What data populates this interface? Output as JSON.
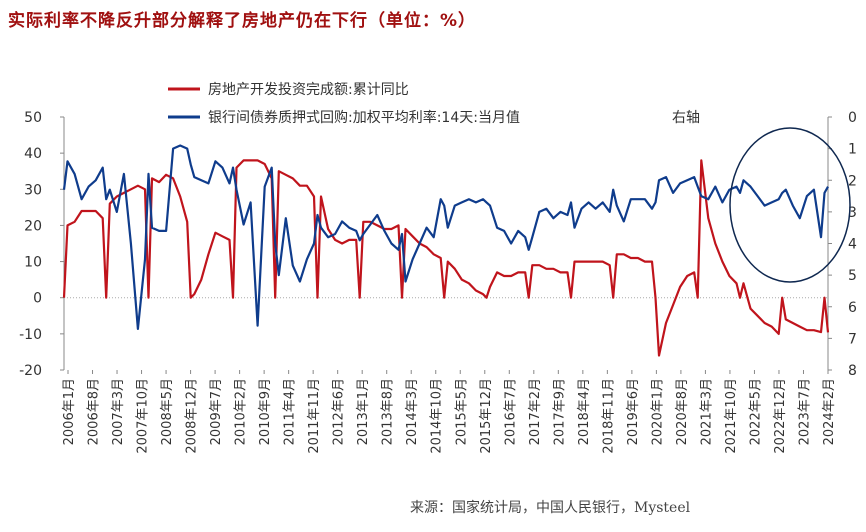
{
  "title": "实际利率不降反升部分解释了房地产仍在下行（单位：%）",
  "source": "来源：国家统计局，中国人民银行，Mysteel",
  "chart_data": {
    "type": "line",
    "title": "实际利率不降反升部分解释了房地产仍在下行（单位：%）",
    "ylabel": "",
    "ylim": [
      -20,
      50
    ],
    "y_ticks": [
      50,
      40,
      30,
      20,
      10,
      0,
      -10,
      -20
    ],
    "ylim_right": [
      0,
      8
    ],
    "right_inverted": true,
    "y_ticks_right": [
      0,
      1,
      2,
      3,
      4,
      5,
      6,
      7,
      8
    ],
    "right_axis_label": "右轴",
    "x_tick_labels": [
      "2006年1月",
      "2006年8月",
      "2007年3月",
      "2007年10月",
      "2008年5月",
      "2008年12月",
      "2009年7月",
      "2010年2月",
      "2010年9月",
      "2011年4月",
      "2011年11月",
      "2012年6月",
      "2013年1月",
      "2013年8月",
      "2014年3月",
      "2014年10月",
      "2015年5月",
      "2015年12月",
      "2016年7月",
      "2017年2月",
      "2017年9月",
      "2018年4月",
      "2018年11月",
      "2019年6月",
      "2020年1月",
      "2020年8月",
      "2021年3月",
      "2021年10月",
      "2022年5月",
      "2022年12月",
      "2023年7月",
      "2024年2月"
    ],
    "legend_position": "top-left",
    "grid": false,
    "zero_line": "dotted",
    "annotation": "ellipse highlighting 2021-10 to 2024-02 rate series",
    "series": [
      {
        "name": "房地产开发投资完成额:累计同比",
        "color": "#c0141c",
        "axis": "left",
        "x": [
          "2006-01",
          "2006-02",
          "2006-04",
          "2006-06",
          "2006-08",
          "2006-10",
          "2006-12",
          "2007-01",
          "2007-02",
          "2007-04",
          "2007-06",
          "2007-08",
          "2007-10",
          "2007-12",
          "2008-01",
          "2008-02",
          "2008-04",
          "2008-06",
          "2008-08",
          "2008-10",
          "2008-12",
          "2009-01",
          "2009-02",
          "2009-04",
          "2009-06",
          "2009-08",
          "2009-10",
          "2009-12",
          "2010-01",
          "2010-02",
          "2010-04",
          "2010-06",
          "2010-08",
          "2010-10",
          "2010-12",
          "2011-01",
          "2011-02",
          "2011-04",
          "2011-06",
          "2011-08",
          "2011-10",
          "2011-12",
          "2012-01",
          "2012-02",
          "2012-04",
          "2012-06",
          "2012-08",
          "2012-10",
          "2012-12",
          "2013-01",
          "2013-02",
          "2013-04",
          "2013-06",
          "2013-08",
          "2013-10",
          "2013-12",
          "2014-01",
          "2014-02",
          "2014-04",
          "2014-06",
          "2014-08",
          "2014-10",
          "2014-12",
          "2015-01",
          "2015-02",
          "2015-04",
          "2015-06",
          "2015-08",
          "2015-10",
          "2015-12",
          "2016-01",
          "2016-02",
          "2016-04",
          "2016-06",
          "2016-08",
          "2016-10",
          "2016-12",
          "2017-01",
          "2017-02",
          "2017-04",
          "2017-06",
          "2017-08",
          "2017-10",
          "2017-12",
          "2018-01",
          "2018-02",
          "2018-04",
          "2018-06",
          "2018-08",
          "2018-10",
          "2018-12",
          "2019-01",
          "2019-02",
          "2019-04",
          "2019-06",
          "2019-08",
          "2019-10",
          "2019-12",
          "2020-01",
          "2020-02",
          "2020-04",
          "2020-06",
          "2020-08",
          "2020-10",
          "2020-12",
          "2021-01",
          "2021-02",
          "2021-04",
          "2021-06",
          "2021-08",
          "2021-10",
          "2021-12",
          "2022-01",
          "2022-02",
          "2022-04",
          "2022-06",
          "2022-08",
          "2022-10",
          "2022-12",
          "2023-01",
          "2023-02",
          "2023-04",
          "2023-06",
          "2023-08",
          "2023-10",
          "2023-12",
          "2024-01",
          "2024-02"
        ],
        "values": [
          0,
          20,
          21,
          24,
          24,
          24,
          22,
          0,
          26,
          28,
          29,
          30,
          31,
          30,
          0,
          33,
          32,
          34,
          33,
          28,
          21,
          0,
          1,
          5,
          12,
          18,
          17,
          16,
          0,
          36,
          38,
          38,
          38,
          37,
          33,
          0,
          35,
          34,
          33,
          31,
          31,
          28,
          0,
          28,
          19,
          16,
          15,
          16,
          16,
          0,
          21,
          21,
          20,
          19,
          19,
          20,
          0,
          19,
          17,
          15,
          14,
          12,
          11,
          0,
          10,
          8,
          5,
          4,
          2,
          1,
          0,
          3,
          7,
          6,
          6,
          7,
          7,
          0,
          9,
          9,
          8,
          8,
          7,
          7,
          0,
          10,
          10,
          10,
          10,
          10,
          9,
          0,
          12,
          12,
          11,
          11,
          10,
          10,
          0,
          -16,
          -7,
          -2,
          3,
          6,
          7,
          0,
          38,
          22,
          15,
          10,
          6,
          4,
          0,
          4,
          -3,
          -5,
          -7,
          -8,
          -10,
          0,
          -6,
          -7,
          -8,
          -9,
          -9,
          -9.5,
          0,
          -9.6
        ]
      },
      {
        "name": "银行间债券质押式回购:加权平均利率:14天:当月值",
        "color": "#0f3c8c",
        "axis": "right",
        "x": [
          "2006-01",
          "2006-02",
          "2006-04",
          "2006-06",
          "2006-08",
          "2006-10",
          "2006-12",
          "2007-01",
          "2007-02",
          "2007-04",
          "2007-06",
          "2007-08",
          "2007-10",
          "2007-12",
          "2008-01",
          "2008-02",
          "2008-04",
          "2008-06",
          "2008-08",
          "2008-10",
          "2008-12",
          "2009-01",
          "2009-02",
          "2009-04",
          "2009-06",
          "2009-08",
          "2009-10",
          "2009-12",
          "2010-01",
          "2010-02",
          "2010-04",
          "2010-06",
          "2010-08",
          "2010-10",
          "2010-12",
          "2011-01",
          "2011-02",
          "2011-04",
          "2011-06",
          "2011-08",
          "2011-10",
          "2011-12",
          "2012-01",
          "2012-02",
          "2012-04",
          "2012-06",
          "2012-08",
          "2012-10",
          "2012-12",
          "2013-01",
          "2013-02",
          "2013-04",
          "2013-06",
          "2013-08",
          "2013-10",
          "2013-12",
          "2014-01",
          "2014-02",
          "2014-04",
          "2014-06",
          "2014-08",
          "2014-10",
          "2014-12",
          "2015-01",
          "2015-02",
          "2015-04",
          "2015-06",
          "2015-08",
          "2015-10",
          "2015-12",
          "2016-01",
          "2016-02",
          "2016-04",
          "2016-06",
          "2016-08",
          "2016-10",
          "2016-12",
          "2017-01",
          "2017-02",
          "2017-04",
          "2017-06",
          "2017-08",
          "2017-10",
          "2017-12",
          "2018-01",
          "2018-02",
          "2018-04",
          "2018-06",
          "2018-08",
          "2018-10",
          "2018-12",
          "2019-01",
          "2019-02",
          "2019-04",
          "2019-06",
          "2019-08",
          "2019-10",
          "2019-12",
          "2020-01",
          "2020-02",
          "2020-04",
          "2020-06",
          "2020-08",
          "2020-10",
          "2020-12",
          "2021-01",
          "2021-02",
          "2021-04",
          "2021-06",
          "2021-08",
          "2021-10",
          "2021-12",
          "2022-01",
          "2022-02",
          "2022-04",
          "2022-06",
          "2022-08",
          "2022-10",
          "2022-12",
          "2023-01",
          "2023-02",
          "2023-04",
          "2023-06",
          "2023-08",
          "2023-10",
          "2023-12",
          "2024-01",
          "2024-02"
        ],
        "values": [
          2.3,
          1.4,
          1.8,
          2.6,
          2.2,
          2.0,
          1.6,
          2.6,
          2.3,
          3.0,
          1.8,
          4.0,
          6.7,
          4.5,
          1.8,
          3.5,
          3.6,
          3.6,
          1.0,
          0.9,
          1.0,
          1.5,
          1.9,
          2.0,
          2.1,
          1.4,
          1.6,
          2.1,
          1.6,
          2.3,
          3.4,
          2.7,
          6.6,
          2.2,
          1.6,
          4.0,
          5.0,
          3.2,
          4.7,
          5.2,
          4.5,
          4.0,
          3.1,
          3.5,
          3.8,
          3.7,
          3.3,
          3.5,
          3.6,
          3.9,
          3.7,
          3.4,
          3.1,
          3.6,
          4.0,
          4.2,
          3.7,
          5.2,
          4.5,
          4.0,
          3.5,
          3.8,
          2.6,
          2.8,
          3.5,
          2.8,
          2.7,
          2.6,
          2.7,
          2.6,
          2.7,
          2.8,
          3.5,
          3.6,
          4.0,
          3.6,
          3.8,
          4.2,
          3.8,
          3.0,
          2.9,
          3.2,
          3.0,
          3.1,
          2.7,
          3.5,
          2.9,
          2.7,
          2.9,
          2.7,
          3.0,
          2.3,
          2.8,
          3.3,
          2.6,
          2.6,
          2.6,
          2.9,
          2.7,
          2.0,
          1.9,
          2.4,
          2.1,
          2.0,
          1.9,
          2.2,
          2.5,
          2.6,
          2.2,
          2.7,
          2.3,
          2.2,
          2.4,
          2.0,
          2.2,
          2.5,
          2.8,
          2.7,
          2.6,
          2.4,
          2.3,
          2.8,
          3.2,
          2.5,
          2.3,
          3.8,
          2.4,
          2.2
        ]
      }
    ]
  }
}
